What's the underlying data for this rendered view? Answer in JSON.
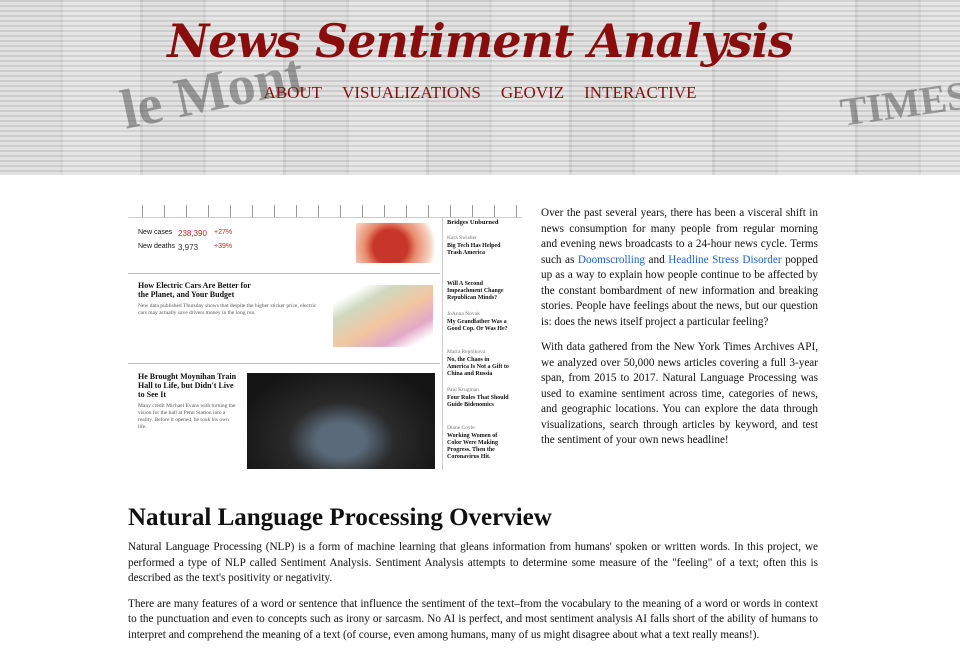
{
  "header": {
    "title": "News Sentiment Analysis",
    "nav": [
      "ABOUT",
      "VISUALIZATIONS",
      "GEOVIZ",
      "INTERACTIVE"
    ],
    "background_words": [
      "le Mont",
      "TIMES"
    ]
  },
  "screenshot": {
    "stats": [
      {
        "label": "New cases",
        "value": "238,390",
        "change": "+27%"
      },
      {
        "label": "New deaths",
        "value": "3,973",
        "change": "+39%"
      }
    ],
    "headline_1": "How Electric Cars Are Better for the Planet, and Your Budget",
    "summary_1": "New data published Thursday shows that despite the higher sticker price, electric cars may actually save drivers money in the long run.",
    "headline_2": "He Brought Moynihan Train Hall to Life, but Didn't Live to See It",
    "summary_2": "Many credit Michael Evans with turning the vision for the hall at Penn Station into a reality. Before it opened, he took his own life.",
    "sidebar": [
      {
        "author": "Kara Swisher",
        "headline": "Big Tech Has Helped Trash America"
      },
      {
        "author": "",
        "headline": "Will A Second Impeachment Change Republican Minds?"
      },
      {
        "author": "JoAnna Novak",
        "headline": "My Grandfather Was a Good Cop. Or Was He?"
      },
      {
        "author": "Maria Repnikova",
        "headline": "No, the Chaos in America Is Not a Gift to China and Russia"
      },
      {
        "author": "Paul Krugman",
        "headline": "Four Rules That Should Guide Bidenomics"
      },
      {
        "author": "Diane Coyle",
        "headline": "Working Women of Color Were Making Progress. Then the Coronavirus Hit."
      }
    ],
    "sidebar_top": "Bridges Unburned"
  },
  "intro": {
    "paragraphs": [
      [
        "Over the past several years, there has been a visceral shift in news consumption for many people from regular morning and evening news broadcasts to a 24-hour news cycle. Terms such as ",
        {
          "link": "Doomscrolling"
        },
        "and",
        {
          "link": "Headline Stress Disorder"
        },
        " popped up as a way to explain how people continue to be affected by the constant bombardment of new information and breaking stories. People have feelings about the news, but our question is: does the news itself project a particular feeling?"
      ],
      [
        "With data gathered from the New York Times Archives API, we analyzed over 50,000 news articles covering a full 3-year span, from 2015 to 2017. Natural Language Processing was used to examine sentiment across time, categories of news, and geographic locations. You can explore the data through visualizations, search through articles by keyword, and test the sentiment of your own news headline!"
      ]
    ]
  },
  "overview": {
    "heading": "Natural Language Processing Overview",
    "paragraphs": [
      "Natural Language Processing (NLP) is a form of machine learning that gleans information from humans' spoken or written words. In this project, we performed a type of NLP called Sentiment Analysis. Sentiment Analysis attempts to determine some measure of the \"feeling\" of a text; often this is described as the text's positivity or negativity.",
      "There are many features of a word or sentence that influence the sentiment of the text–from the vocabulary to the meaning of a word or words in context to the punctuation and even to concepts such as irony or sarcasm. No AI is perfect, and most sentiment analysis AI falls short of the ability of humans to interpret and comprehend the meaning of a text (of course, even among humans, many of us might disagree about what a text really means!)."
    ]
  }
}
